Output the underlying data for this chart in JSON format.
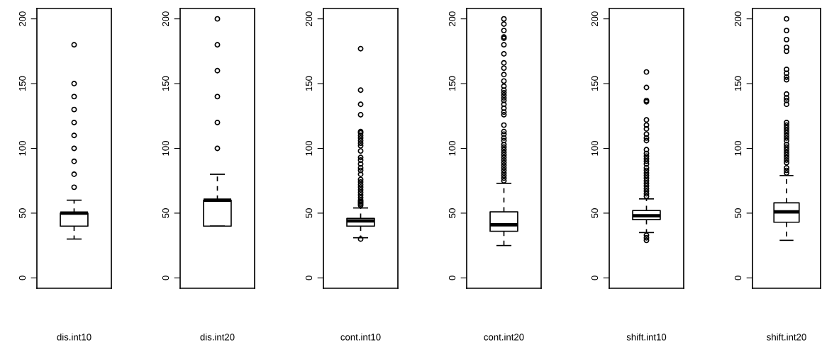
{
  "chart_data": [
    {
      "type": "box",
      "categories": [
        "dis.int10"
      ],
      "ylim": [
        -8,
        208
      ],
      "yticks": [
        0,
        50,
        100,
        150,
        200
      ],
      "grid": false,
      "boxes": [
        {
          "low": 30,
          "q1": 40,
          "median": 50,
          "q3": 50,
          "high": 60,
          "outliers": [
            70,
            80,
            90,
            100,
            110,
            120,
            130,
            140,
            150,
            180
          ]
        }
      ]
    },
    {
      "type": "box",
      "categories": [
        "dis.int20"
      ],
      "ylim": [
        -8,
        208
      ],
      "yticks": [
        0,
        50,
        100,
        150,
        200
      ],
      "grid": false,
      "boxes": [
        {
          "low": 40,
          "q1": 40,
          "median": 60,
          "q3": 60,
          "high": 80,
          "outliers": [
            100,
            120,
            140,
            160,
            180,
            200
          ]
        }
      ]
    },
    {
      "type": "box",
      "categories": [
        "cont.int10"
      ],
      "ylim": [
        -8,
        208
      ],
      "yticks": [
        0,
        50,
        100,
        150,
        200
      ],
      "grid": false,
      "boxes": [
        {
          "low": 31,
          "q1": 40,
          "median": 44,
          "q3": 46,
          "high": 54,
          "outliers": [
            30,
            56,
            57,
            58,
            59,
            60,
            62,
            64,
            66,
            68,
            70,
            72,
            74,
            76,
            80,
            83,
            85,
            88,
            91,
            93,
            98,
            102,
            104,
            106,
            108,
            110,
            112,
            113,
            126,
            134,
            145,
            177
          ]
        }
      ]
    },
    {
      "type": "box",
      "categories": [
        "cont.int20"
      ],
      "ylim": [
        -8,
        208
      ],
      "yticks": [
        0,
        50,
        100,
        150,
        200
      ],
      "grid": false,
      "boxes": [
        {
          "low": 25,
          "q1": 36,
          "median": 41,
          "q3": 51,
          "high": 73,
          "outliers": [
            75,
            77,
            79,
            81,
            83,
            85,
            87,
            89,
            91,
            93,
            95,
            97,
            99,
            101,
            103,
            106,
            108,
            111,
            113,
            118,
            126,
            128,
            131,
            134,
            137,
            139,
            141,
            143,
            145,
            148,
            152,
            157,
            162,
            166,
            173,
            180,
            185,
            186,
            191,
            196,
            200
          ]
        }
      ]
    },
    {
      "type": "box",
      "categories": [
        "shift.int10"
      ],
      "ylim": [
        -8,
        208
      ],
      "yticks": [
        0,
        50,
        100,
        150,
        200
      ],
      "grid": false,
      "boxes": [
        {
          "low": 35,
          "q1": 45,
          "median": 48,
          "q3": 52,
          "high": 61,
          "outliers": [
            29,
            31,
            33,
            63,
            65,
            67,
            69,
            71,
            73,
            75,
            77,
            79,
            81,
            83,
            85,
            88,
            90,
            92,
            94,
            96,
            99,
            106,
            108,
            111,
            115,
            118,
            122,
            136,
            137,
            147,
            159
          ]
        }
      ]
    },
    {
      "type": "box",
      "categories": [
        "shift.int20"
      ],
      "ylim": [
        -8,
        208
      ],
      "yticks": [
        0,
        50,
        100,
        150,
        200
      ],
      "grid": false,
      "boxes": [
        {
          "low": 29,
          "q1": 43,
          "median": 51,
          "q3": 58,
          "high": 79,
          "outliers": [
            81,
            83,
            85,
            89,
            91,
            93,
            95,
            97,
            99,
            101,
            103,
            106,
            108,
            110,
            112,
            114,
            116,
            118,
            120,
            134,
            137,
            139,
            142,
            153,
            155,
            158,
            161,
            175,
            178,
            184,
            191,
            200
          ]
        }
      ]
    }
  ]
}
